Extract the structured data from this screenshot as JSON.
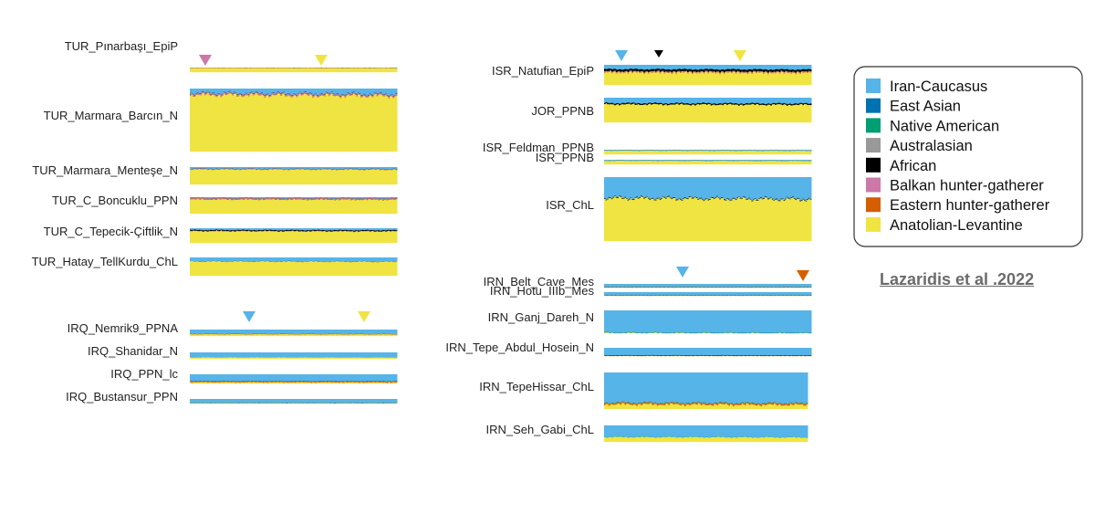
{
  "chart_data": {
    "type": "bar",
    "colors": {
      "Iran-Caucasus": "#56b4e9",
      "East Asian": "#0072b2",
      "Native American": "#009e73",
      "Australasian": "#999999",
      "African": "#000000",
      "Balkan hunter-gatherer": "#cc79a7",
      "Eastern hunter-gatherer": "#d55e00",
      "Anatolian-Levantine": "#f0e442"
    },
    "legend": {
      "placement": "right",
      "entries": [
        "Iran-Caucasus",
        "East Asian",
        "Native American",
        "Australasian",
        "African",
        "Balkan hunter-gatherer",
        "Eastern hunter-gatherer",
        "Anatolian-Levantine"
      ]
    },
    "series_order": [
      "Iran-Caucasus",
      "East Asian",
      "Native American",
      "Australasian",
      "African",
      "Balkan hunter-gatherer",
      "Eastern hunter-gatherer",
      "Anatolian-Levantine"
    ],
    "populations": [
      {
        "label": "TUR_Pınarbaşı_EpiP",
        "values": [
          0.01,
          0.01,
          0,
          0,
          0.005,
          0.08,
          0.005,
          0.89
        ]
      },
      {
        "label": "TUR_Marmara_Barcın_N",
        "values": [
          0.08,
          0,
          0,
          0,
          0.005,
          0.02,
          0.005,
          0.89
        ]
      },
      {
        "label": "TUR_Marmara_Menteşe_N",
        "values": [
          0.1,
          0,
          0,
          0,
          0.01,
          0.03,
          0.01,
          0.85
        ]
      },
      {
        "label": "TUR_C_Boncuklu_PPN",
        "values": [
          0.06,
          0,
          0,
          0,
          0.01,
          0.04,
          0.04,
          0.85
        ]
      },
      {
        "label": "TUR_C_Tepecik-Çiftlik_N",
        "values": [
          0.13,
          0,
          0,
          0,
          0.06,
          0.01,
          0.02,
          0.78
        ]
      },
      {
        "label": "TUR_Hatay_TellKurdu_ChL",
        "values": [
          0.22,
          0,
          0,
          0,
          0.005,
          0,
          0.005,
          0.77
        ]
      },
      {
        "label": "IRQ_Nemrik9_PPNA",
        "values": [
          0.7,
          0,
          0.01,
          0,
          0.01,
          0.01,
          0.02,
          0.25
        ]
      },
      {
        "label": "IRQ_Shanidar_N",
        "values": [
          0.76,
          0,
          0.01,
          0,
          0,
          0,
          0.01,
          0.22
        ]
      },
      {
        "label": "IRQ_PPN_lc",
        "values": [
          0.75,
          0,
          0.01,
          0,
          0.02,
          0.04,
          0.07,
          0.11
        ]
      },
      {
        "label": "IRQ_Bustansur_PPN",
        "values": [
          0.89,
          0,
          0.01,
          0,
          0.03,
          0,
          0.02,
          0.05
        ]
      },
      {
        "label": "ISR_Natufian_EpiP",
        "values": [
          0.22,
          0,
          0.01,
          0,
          0.1,
          0.04,
          0.02,
          0.61
        ]
      },
      {
        "label": "JOR_PPNB",
        "values": [
          0.23,
          0,
          0,
          0,
          0.05,
          0,
          0,
          0.72
        ]
      },
      {
        "label": "ISR_Feldman_PPNB",
        "values": [
          0.19,
          0,
          0,
          0,
          0.03,
          0,
          0,
          0.78
        ]
      },
      {
        "label": "ISR_PPNB",
        "values": [
          0.2,
          0,
          0,
          0,
          0.03,
          0,
          0,
          0.77
        ]
      },
      {
        "label": "ISR_ChL",
        "values": [
          0.33,
          0,
          0,
          0,
          0.01,
          0,
          0,
          0.66
        ]
      },
      {
        "label": "IRN_Belt_Cave_Mes",
        "values": [
          0.84,
          0,
          0.02,
          0.01,
          0.03,
          0,
          0.1,
          0
        ]
      },
      {
        "label": "IRN_Hotu_IIIb_Mes",
        "values": [
          0.84,
          0,
          0.02,
          0.01,
          0.03,
          0,
          0.1,
          0
        ]
      },
      {
        "label": "IRN_Ganj_Dareh_N",
        "values": [
          0.98,
          0.01,
          0.01,
          0,
          0,
          0,
          0,
          0
        ]
      },
      {
        "label": "IRN_Tepe_Abdul_Hosein_N",
        "values": [
          0.9,
          0,
          0.02,
          0,
          0.05,
          0,
          0.03,
          0
        ]
      },
      {
        "label": "IRN_TepeHissar_ChL",
        "values": [
          0.83,
          0,
          0.01,
          0,
          0,
          0,
          0.04,
          0.12
        ]
      },
      {
        "label": "IRN_Seh_Gabi_ChL",
        "values": [
          0.7,
          0,
          0.02,
          0,
          0,
          0,
          0,
          0.28
        ]
      }
    ]
  },
  "credit": "Lazaridis et al .2022"
}
